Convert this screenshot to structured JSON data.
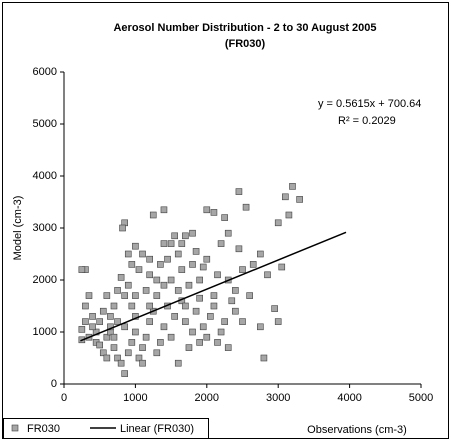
{
  "chart_data": {
    "type": "scatter",
    "title": "Aerosol Number Distribution - 2 to 30 August 2005",
    "subtitle": "(FR030)",
    "x_label": "Observations (cm-3)",
    "y_label": "Model (cm-3)",
    "annotations": [
      "y = 0.5615x + 700.64",
      "R² = 0.2029"
    ],
    "xlim": [
      0,
      5000
    ],
    "xticks": [
      0,
      1000,
      2000,
      3000,
      4000,
      5000
    ],
    "ylim": [
      0,
      6000
    ],
    "yticks": [
      0,
      1000,
      2000,
      3000,
      4000,
      5000,
      6000
    ],
    "grid": false,
    "legend": "bottom-left",
    "series": [
      {
        "name": "FR030",
        "color": "#a6a6a6",
        "x": [
          850,
          820,
          1400,
          1250,
          2000,
          2100,
          2450,
          2550,
          3200,
          3100,
          3300,
          3000,
          3150,
          2250,
          1700,
          1550,
          1800,
          1000,
          900,
          2300,
          2750,
          2450,
          2200,
          2650,
          2850,
          3050,
          3000,
          2750,
          2800,
          2950,
          2600,
          2500,
          2400,
          2350,
          2300,
          2150,
          2000,
          1950,
          1850,
          1900,
          1750,
          1650,
          1600,
          1500,
          1450,
          1350,
          1300,
          1200,
          1150,
          1100,
          1050,
          950,
          900,
          850,
          800,
          750,
          700,
          650,
          600,
          550,
          500,
          450,
          400,
          350,
          300,
          250,
          250,
          300,
          250,
          350,
          300,
          400,
          450,
          500,
          550,
          600,
          650,
          700,
          750,
          800,
          850,
          900,
          950,
          1000,
          1050,
          1100,
          1150,
          1200,
          1250,
          1300,
          1350,
          1400,
          1450,
          1500,
          1550,
          1600,
          1650,
          1700,
          1750,
          1800,
          1850,
          1900,
          1950,
          2000,
          2050,
          2100,
          2150,
          2200,
          2250,
          2300,
          2400,
          2500,
          2100,
          1600,
          1400,
          1200,
          1000,
          950,
          850,
          750,
          700,
          650,
          600,
          1100,
          1300,
          1500,
          1700,
          1800,
          1900,
          1000,
          1200,
          1400,
          1650
        ],
        "values": [
          3100,
          3000,
          3350,
          3250,
          3350,
          3300,
          3700,
          3400,
          3800,
          3600,
          3550,
          3100,
          3250,
          3200,
          2850,
          2850,
          2900,
          2650,
          2500,
          2900,
          2500,
          2600,
          2700,
          2300,
          2100,
          2250,
          1200,
          1100,
          500,
          1450,
          1700,
          1200,
          1400,
          1600,
          2000,
          2100,
          2400,
          2250,
          2550,
          1650,
          1900,
          2200,
          2500,
          2700,
          2400,
          2300,
          2000,
          2100,
          1800,
          2500,
          2200,
          2300,
          1900,
          1700,
          2050,
          1800,
          1500,
          1300,
          1700,
          1400,
          1200,
          1000,
          1100,
          900,
          1200,
          850,
          1050,
          2200,
          2200,
          1700,
          1500,
          1300,
          800,
          750,
          600,
          900,
          1000,
          700,
          500,
          400,
          200,
          600,
          800,
          1000,
          500,
          700,
          900,
          1200,
          1400,
          600,
          800,
          1100,
          1500,
          900,
          1300,
          400,
          1600,
          1200,
          700,
          1000,
          1400,
          800,
          1100,
          900,
          1300,
          1500,
          800,
          1000,
          1200,
          700,
          1800,
          2200,
          1700,
          1800,
          1900,
          1500,
          1300,
          1500,
          1100,
          1200,
          900,
          1100,
          500,
          400,
          1700,
          2000,
          1500,
          2300,
          2000,
          1700,
          2400,
          2700,
          2700
        ]
      },
      {
        "name": "Linear (FR030)",
        "color": "#000000",
        "x": [
          230,
          3950
        ],
        "values": [
          830,
          2918
        ]
      }
    ]
  }
}
